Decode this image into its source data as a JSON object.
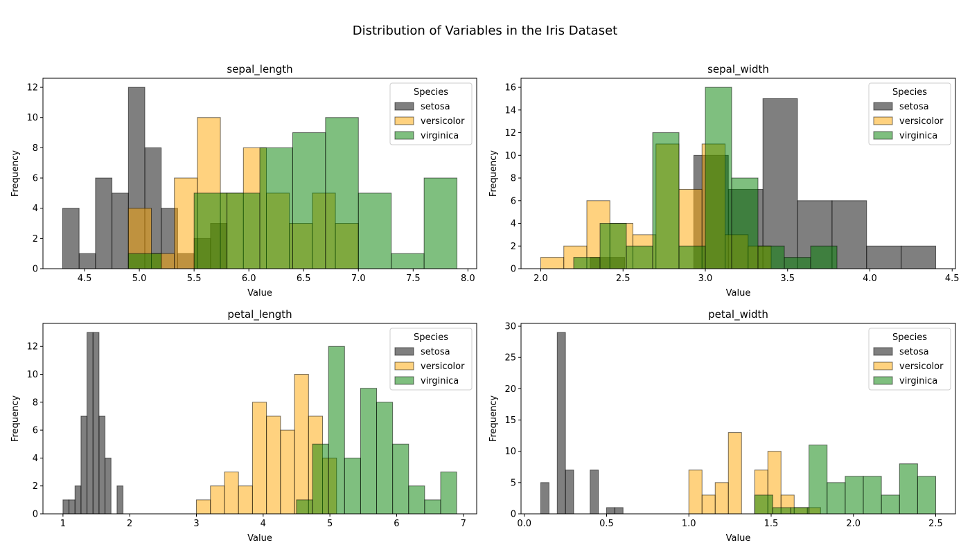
{
  "figure": {
    "title": "Distribution of Variables in the Iris Dataset",
    "legend_title": "Species",
    "series_colors": {
      "setosa": "#000000",
      "versicolor": "#FFA500",
      "virginica": "#008000"
    },
    "bar_alpha": 0.5
  },
  "chart_data": [
    {
      "type": "bar",
      "title": "sepal_length",
      "xlabel": "Value",
      "ylabel": "Frequency",
      "xlim": [
        4.12,
        8.08
      ],
      "ylim": [
        0,
        12.6
      ],
      "xticks": [
        4.5,
        5.0,
        5.5,
        6.0,
        6.5,
        7.0,
        7.5,
        8.0
      ],
      "xtick_labels": [
        "4.5",
        "5.0",
        "5.5",
        "6.0",
        "6.5",
        "7.0",
        "7.5",
        "8.0"
      ],
      "yticks": [
        0,
        2,
        4,
        6,
        8,
        10,
        12
      ],
      "legend_position": "top-right",
      "series": [
        {
          "name": "setosa",
          "bins": [
            [
              4.3,
              4.45,
              4
            ],
            [
              4.45,
              4.6,
              1
            ],
            [
              4.6,
              4.75,
              6
            ],
            [
              4.75,
              4.9,
              5
            ],
            [
              4.9,
              5.05,
              12
            ],
            [
              5.05,
              5.2,
              8
            ],
            [
              5.2,
              5.35,
              4
            ],
            [
              5.35,
              5.5,
              1
            ],
            [
              5.5,
              5.65,
              2
            ],
            [
              5.65,
              5.8,
              3
            ]
          ]
        },
        {
          "name": "versicolor",
          "bins": [
            [
              4.9,
              5.11,
              4
            ],
            [
              5.11,
              5.32,
              1
            ],
            [
              5.32,
              5.53,
              6
            ],
            [
              5.53,
              5.74,
              10
            ],
            [
              5.74,
              5.95,
              5
            ],
            [
              5.95,
              6.16,
              8
            ],
            [
              6.16,
              6.37,
              5
            ],
            [
              6.37,
              6.58,
              3
            ],
            [
              6.58,
              6.79,
              5
            ],
            [
              6.79,
              7.0,
              3
            ]
          ]
        },
        {
          "name": "virginica",
          "bins": [
            [
              4.9,
              5.2,
              1
            ],
            [
              5.2,
              5.5,
              0
            ],
            [
              5.5,
              5.8,
              5
            ],
            [
              5.8,
              6.1,
              5
            ],
            [
              6.1,
              6.4,
              8
            ],
            [
              6.4,
              6.7,
              9
            ],
            [
              6.7,
              7.0,
              10
            ],
            [
              7.0,
              7.3,
              5
            ],
            [
              7.3,
              7.6,
              1
            ],
            [
              7.6,
              7.9,
              6
            ]
          ]
        }
      ]
    },
    {
      "type": "bar",
      "title": "sepal_width",
      "xlabel": "Value",
      "ylabel": "Frequency",
      "xlim": [
        1.88,
        4.52
      ],
      "ylim": [
        0,
        16.8
      ],
      "xticks": [
        2.0,
        2.5,
        3.0,
        3.5,
        4.0,
        4.5
      ],
      "xtick_labels": [
        "2.0",
        "2.5",
        "3.0",
        "3.5",
        "4.0",
        "4.5"
      ],
      "yticks": [
        0,
        2,
        4,
        6,
        8,
        10,
        12,
        14,
        16
      ],
      "legend_position": "top-right",
      "series": [
        {
          "name": "setosa",
          "bins": [
            [
              2.3,
              2.51,
              1
            ],
            [
              2.51,
              2.72,
              0
            ],
            [
              2.72,
              2.93,
              0
            ],
            [
              2.93,
              3.14,
              10
            ],
            [
              3.14,
              3.35,
              7
            ],
            [
              3.35,
              3.56,
              15
            ],
            [
              3.56,
              3.77,
              6
            ],
            [
              3.77,
              3.98,
              6
            ],
            [
              3.98,
              4.19,
              2
            ],
            [
              4.19,
              4.4,
              2
            ]
          ]
        },
        {
          "name": "versicolor",
          "bins": [
            [
              2.0,
              2.14,
              1
            ],
            [
              2.14,
              2.28,
              2
            ],
            [
              2.28,
              2.42,
              6
            ],
            [
              2.42,
              2.56,
              4
            ],
            [
              2.56,
              2.7,
              3
            ],
            [
              2.7,
              2.84,
              11
            ],
            [
              2.84,
              2.98,
              7
            ],
            [
              2.98,
              3.12,
              11
            ],
            [
              3.12,
              3.26,
              3
            ],
            [
              3.26,
              3.4,
              2
            ]
          ]
        },
        {
          "name": "virginica",
          "bins": [
            [
              2.2,
              2.36,
              1
            ],
            [
              2.36,
              2.52,
              4
            ],
            [
              2.52,
              2.68,
              2
            ],
            [
              2.68,
              2.84,
              12
            ],
            [
              2.84,
              3.0,
              2
            ],
            [
              3.0,
              3.16,
              16
            ],
            [
              3.16,
              3.32,
              8
            ],
            [
              3.32,
              3.48,
              2
            ],
            [
              3.48,
              3.64,
              1
            ],
            [
              3.64,
              3.8,
              2
            ]
          ]
        }
      ]
    },
    {
      "type": "bar",
      "title": "petal_length",
      "xlabel": "Value",
      "ylabel": "Frequency",
      "xlim": [
        0.7,
        7.2
      ],
      "ylim": [
        0,
        13.65
      ],
      "xticks": [
        1,
        2,
        3,
        4,
        5,
        6,
        7
      ],
      "xtick_labels": [
        "1",
        "2",
        "3",
        "4",
        "5",
        "6",
        "7"
      ],
      "yticks": [
        0,
        2,
        4,
        6,
        8,
        10,
        12
      ],
      "legend_position": "top-right",
      "series": [
        {
          "name": "setosa",
          "bins": [
            [
              1.0,
              1.09,
              1
            ],
            [
              1.09,
              1.18,
              1
            ],
            [
              1.18,
              1.27,
              2
            ],
            [
              1.27,
              1.36,
              7
            ],
            [
              1.36,
              1.45,
              13
            ],
            [
              1.45,
              1.54,
              13
            ],
            [
              1.54,
              1.63,
              7
            ],
            [
              1.63,
              1.72,
              4
            ],
            [
              1.72,
              1.81,
              0
            ],
            [
              1.81,
              1.9,
              2
            ]
          ]
        },
        {
          "name": "versicolor",
          "bins": [
            [
              3.0,
              3.21,
              1
            ],
            [
              3.21,
              3.42,
              2
            ],
            [
              3.42,
              3.63,
              3
            ],
            [
              3.63,
              3.84,
              2
            ],
            [
              3.84,
              4.05,
              8
            ],
            [
              4.05,
              4.26,
              7
            ],
            [
              4.26,
              4.47,
              6
            ],
            [
              4.47,
              4.68,
              10
            ],
            [
              4.68,
              4.89,
              7
            ],
            [
              4.89,
              5.1,
              4
            ]
          ]
        },
        {
          "name": "virginica",
          "bins": [
            [
              4.5,
              4.74,
              1
            ],
            [
              4.74,
              4.98,
              5
            ],
            [
              4.98,
              5.22,
              12
            ],
            [
              5.22,
              5.46,
              4
            ],
            [
              5.46,
              5.7,
              9
            ],
            [
              5.7,
              5.94,
              8
            ],
            [
              5.94,
              6.18,
              5
            ],
            [
              6.18,
              6.42,
              2
            ],
            [
              6.42,
              6.66,
              1
            ],
            [
              6.66,
              6.9,
              3
            ]
          ]
        }
      ]
    },
    {
      "type": "bar",
      "title": "petal_width",
      "xlabel": "Value",
      "ylabel": "Frequency",
      "xlim": [
        -0.02,
        2.62
      ],
      "ylim": [
        0,
        30.45
      ],
      "xticks": [
        0.0,
        0.5,
        1.0,
        1.5,
        2.0,
        2.5
      ],
      "xtick_labels": [
        "0.0",
        "0.5",
        "1.0",
        "1.5",
        "2.0",
        "2.5"
      ],
      "yticks": [
        0,
        5,
        10,
        15,
        20,
        25,
        30
      ],
      "legend_position": "top-right",
      "series": [
        {
          "name": "setosa",
          "bins": [
            [
              0.1,
              0.15,
              5
            ],
            [
              0.15,
              0.2,
              0
            ],
            [
              0.2,
              0.25,
              29
            ],
            [
              0.25,
              0.3,
              7
            ],
            [
              0.3,
              0.35,
              0
            ],
            [
              0.35,
              0.4,
              0
            ],
            [
              0.4,
              0.45,
              7
            ],
            [
              0.45,
              0.5,
              0
            ],
            [
              0.5,
              0.55,
              1
            ],
            [
              0.55,
              0.6,
              1
            ]
          ]
        },
        {
          "name": "versicolor",
          "bins": [
            [
              1.0,
              1.08,
              7
            ],
            [
              1.08,
              1.16,
              3
            ],
            [
              1.16,
              1.24,
              5
            ],
            [
              1.24,
              1.32,
              13
            ],
            [
              1.32,
              1.4,
              0
            ],
            [
              1.4,
              1.48,
              7
            ],
            [
              1.48,
              1.56,
              10
            ],
            [
              1.56,
              1.64,
              3
            ],
            [
              1.64,
              1.72,
              1
            ],
            [
              1.72,
              1.8,
              1
            ]
          ]
        },
        {
          "name": "virginica",
          "bins": [
            [
              1.4,
              1.51,
              3
            ],
            [
              1.51,
              1.62,
              1
            ],
            [
              1.62,
              1.73,
              1
            ],
            [
              1.73,
              1.84,
              11
            ],
            [
              1.84,
              1.95,
              5
            ],
            [
              1.95,
              2.06,
              6
            ],
            [
              2.06,
              2.17,
              6
            ],
            [
              2.17,
              2.28,
              3
            ],
            [
              2.28,
              2.39,
              8
            ],
            [
              2.39,
              2.5,
              6
            ]
          ]
        }
      ]
    }
  ]
}
